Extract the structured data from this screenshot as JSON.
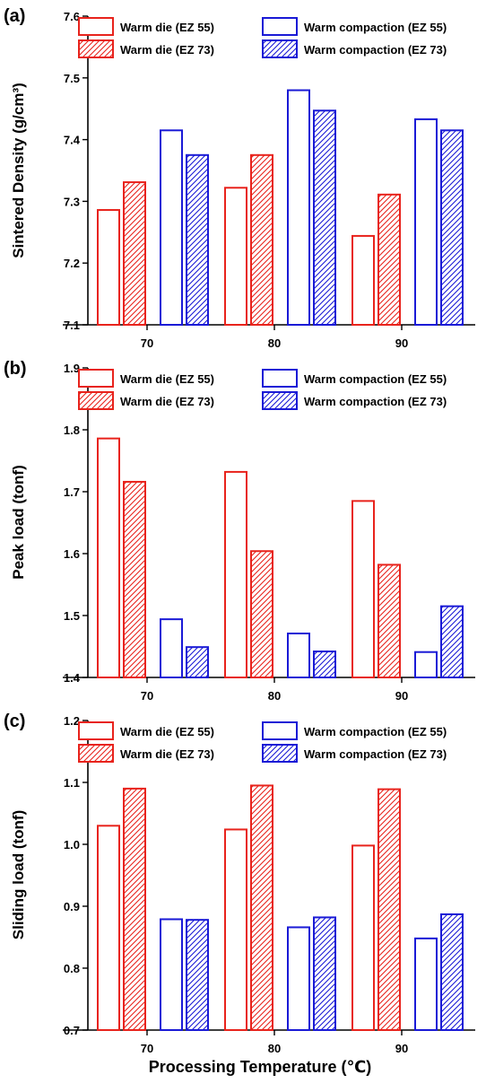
{
  "chart_data": [
    {
      "type": "bar",
      "panel_label": "(a)",
      "ylabel": "Sintered Density (g/cm³)",
      "ylim": [
        7.1,
        7.6
      ],
      "yticks": [
        "7.1",
        "7.2",
        "7.3",
        "7.4",
        "7.5",
        "7.6"
      ],
      "categories": [
        "70",
        "80",
        "90"
      ],
      "series": [
        {
          "name": "Warm die (EZ 55)",
          "values": [
            7.286,
            7.322,
            7.244
          ]
        },
        {
          "name": "Warm die (EZ 73)",
          "values": [
            7.331,
            7.375,
            7.311
          ]
        },
        {
          "name": "Warm compaction (EZ 55)",
          "values": [
            7.415,
            7.48,
            7.433
          ]
        },
        {
          "name": "Warm compaction (EZ 73)",
          "values": [
            7.375,
            7.447,
            7.415
          ]
        }
      ],
      "legend": "top"
    },
    {
      "type": "bar",
      "panel_label": "(b)",
      "ylabel": "Peak load (tonf)",
      "ylim": [
        1.4,
        1.9
      ],
      "yticks": [
        "1.4",
        "1.5",
        "1.6",
        "1.7",
        "1.8",
        "1.9"
      ],
      "categories": [
        "70",
        "80",
        "90"
      ],
      "series": [
        {
          "name": "Warm die (EZ 55)",
          "values": [
            1.786,
            1.732,
            1.685
          ]
        },
        {
          "name": "Warm die (EZ 73)",
          "values": [
            1.716,
            1.604,
            1.582
          ]
        },
        {
          "name": "Warm compaction (EZ 55)",
          "values": [
            1.494,
            1.471,
            1.441
          ]
        },
        {
          "name": "Warm compaction (EZ 73)",
          "values": [
            1.449,
            1.442,
            1.515
          ]
        }
      ],
      "legend": "top"
    },
    {
      "type": "bar",
      "panel_label": "(c)",
      "ylabel": "Sliding load (tonf)",
      "xlabel": "Processing Temperature (℃)",
      "ylim": [
        0.7,
        1.2
      ],
      "yticks": [
        "0.7",
        "0.8",
        "0.9",
        "1.0",
        "1.1",
        "1.2"
      ],
      "categories": [
        "70",
        "80",
        "90"
      ],
      "series": [
        {
          "name": "Warm die (EZ 55)",
          "values": [
            1.03,
            1.024,
            0.998
          ]
        },
        {
          "name": "Warm die (EZ 73)",
          "values": [
            1.09,
            1.095,
            1.089
          ]
        },
        {
          "name": "Warm compaction (EZ 55)",
          "values": [
            0.879,
            0.866,
            0.848
          ]
        },
        {
          "name": "Warm compaction (EZ 73)",
          "values": [
            0.878,
            0.882,
            0.887
          ]
        }
      ],
      "legend": "top"
    }
  ],
  "colors": {
    "warm_die": "#e8231c",
    "warm_compaction": "#1a1ad6",
    "axis": "#000000"
  },
  "series_styles": [
    "open",
    "hatched",
    "open",
    "hatched"
  ]
}
